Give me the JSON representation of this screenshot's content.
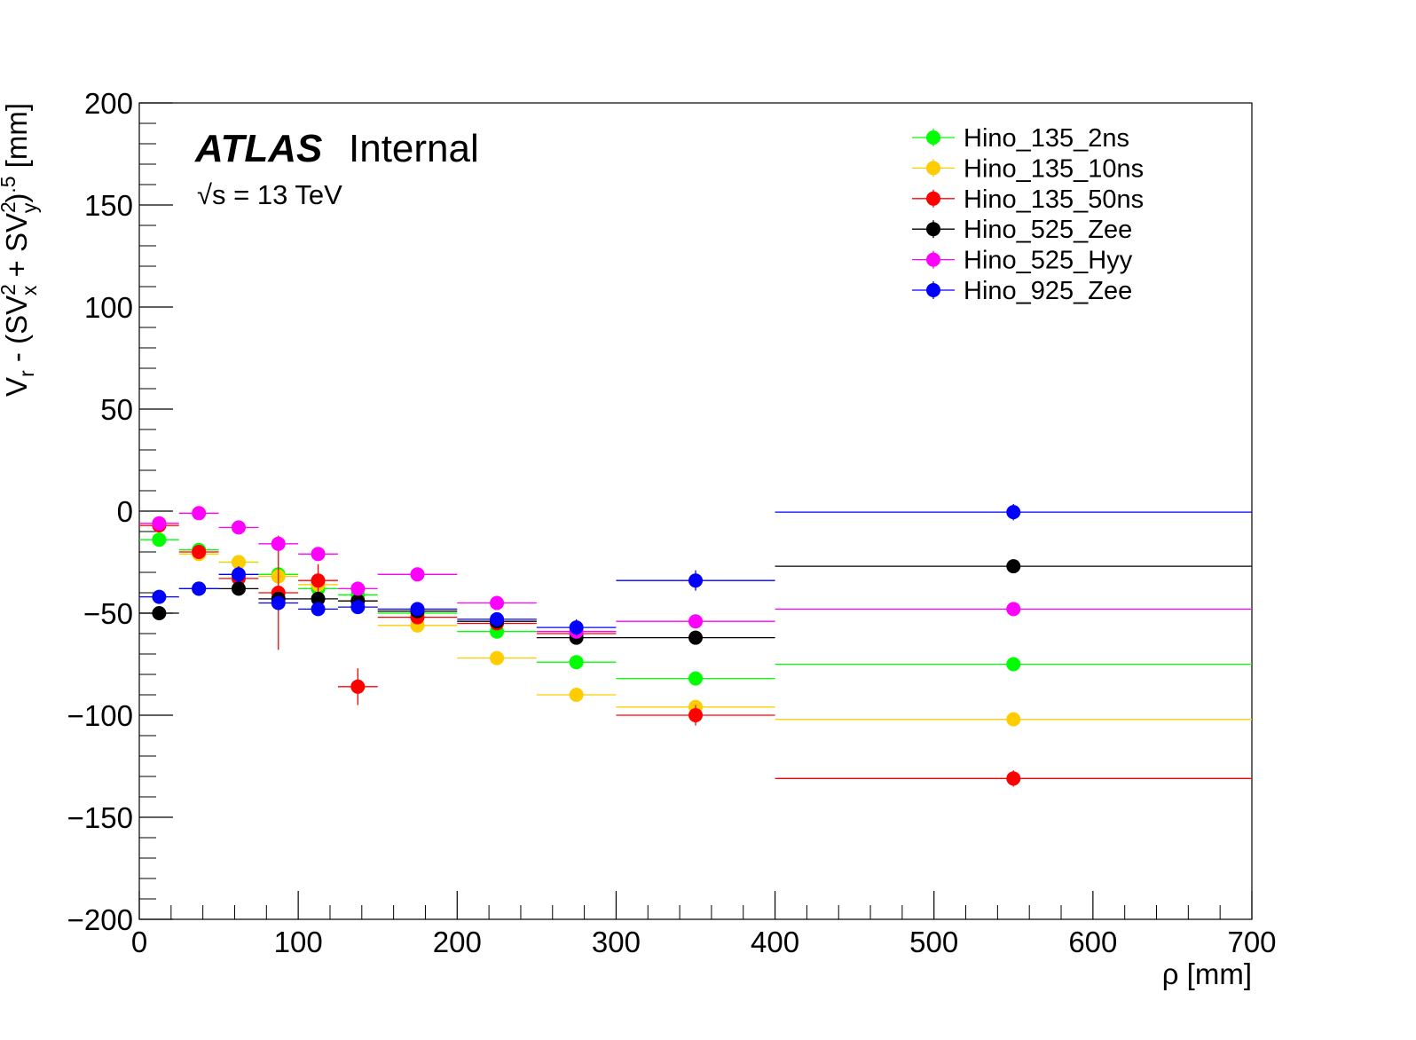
{
  "chart_data": {
    "type": "scatter",
    "xlabel": "ρ [mm]",
    "ylabel": "V_r - (SV_x^2 + SV_y^2)^.5 [mm]",
    "xlim": [
      0,
      700
    ],
    "ylim": [
      -200,
      200
    ],
    "x_ticks": [
      0,
      100,
      200,
      300,
      400,
      500,
      600,
      700
    ],
    "y_ticks": [
      -200,
      -150,
      -100,
      -50,
      0,
      50,
      100,
      150,
      200
    ],
    "x_tick_labels": [
      "0",
      "100",
      "200",
      "300",
      "400",
      "500",
      "600",
      "700"
    ],
    "y_tick_labels": [
      "−200",
      "−150",
      "−100",
      "−50",
      "0",
      "50",
      "100",
      "150",
      "200"
    ],
    "grid": false,
    "legend_position": "top-right",
    "annotation": {
      "atlas": "ATLAS",
      "status": "Internal",
      "energy": "√s = 13 TeV"
    },
    "bins": [
      [
        0,
        25
      ],
      [
        25,
        50
      ],
      [
        50,
        75
      ],
      [
        75,
        100
      ],
      [
        100,
        125
      ],
      [
        125,
        150
      ],
      [
        150,
        200
      ],
      [
        200,
        250
      ],
      [
        250,
        300
      ],
      [
        300,
        400
      ],
      [
        400,
        700
      ]
    ],
    "series": [
      {
        "name": "Hino_135_2ns",
        "color": "#00ff00",
        "values": [
          -14,
          -19,
          -25,
          -31,
          -38,
          -41,
          -50,
          -59,
          -74,
          -82,
          -75
        ],
        "errors": [
          2,
          2,
          2,
          3,
          3,
          3,
          2,
          3,
          3,
          3,
          2
        ]
      },
      {
        "name": "Hino_135_10ns",
        "color": "#ffcc00",
        "values": [
          -7,
          -21,
          -25,
          -32,
          -36,
          -44,
          -56,
          -72,
          -90,
          -96,
          -102
        ],
        "errors": [
          2,
          2,
          2,
          3,
          3,
          3,
          2,
          3,
          3,
          3,
          2
        ]
      },
      {
        "name": "Hino_135_50ns",
        "color": "#ff0000",
        "values": [
          -7,
          -20,
          -33,
          -40,
          -34,
          -86,
          -52,
          -55,
          -60,
          -100,
          -131
        ],
        "errors": [
          2,
          3,
          3,
          28,
          8,
          9,
          3,
          3,
          3,
          5,
          4
        ]
      },
      {
        "name": "Hino_525_Zee",
        "color": "#000000",
        "values": [
          -50,
          -38,
          -38,
          -43,
          -43,
          -44,
          -49,
          -54,
          -62,
          -62,
          -27
        ],
        "errors": [
          2,
          2,
          2,
          3,
          3,
          3,
          2,
          3,
          3,
          3,
          2
        ]
      },
      {
        "name": "Hino_525_Hyy",
        "color": "#ff00ff",
        "values": [
          -6,
          -1,
          -8,
          -16,
          -21,
          -38,
          -31,
          -45,
          -59,
          -54,
          -48
        ],
        "errors": [
          2,
          3,
          2,
          3,
          3,
          3,
          2,
          3,
          3,
          3,
          2
        ]
      },
      {
        "name": "Hino_925_Zee",
        "color": "#0000ff",
        "values": [
          -42,
          -38,
          -31,
          -45,
          -48,
          -47,
          -48,
          -53,
          -57,
          -34,
          -0.5
        ],
        "errors": [
          2,
          2,
          4,
          3,
          3,
          3,
          2,
          3,
          4,
          5,
          4
        ]
      }
    ]
  }
}
